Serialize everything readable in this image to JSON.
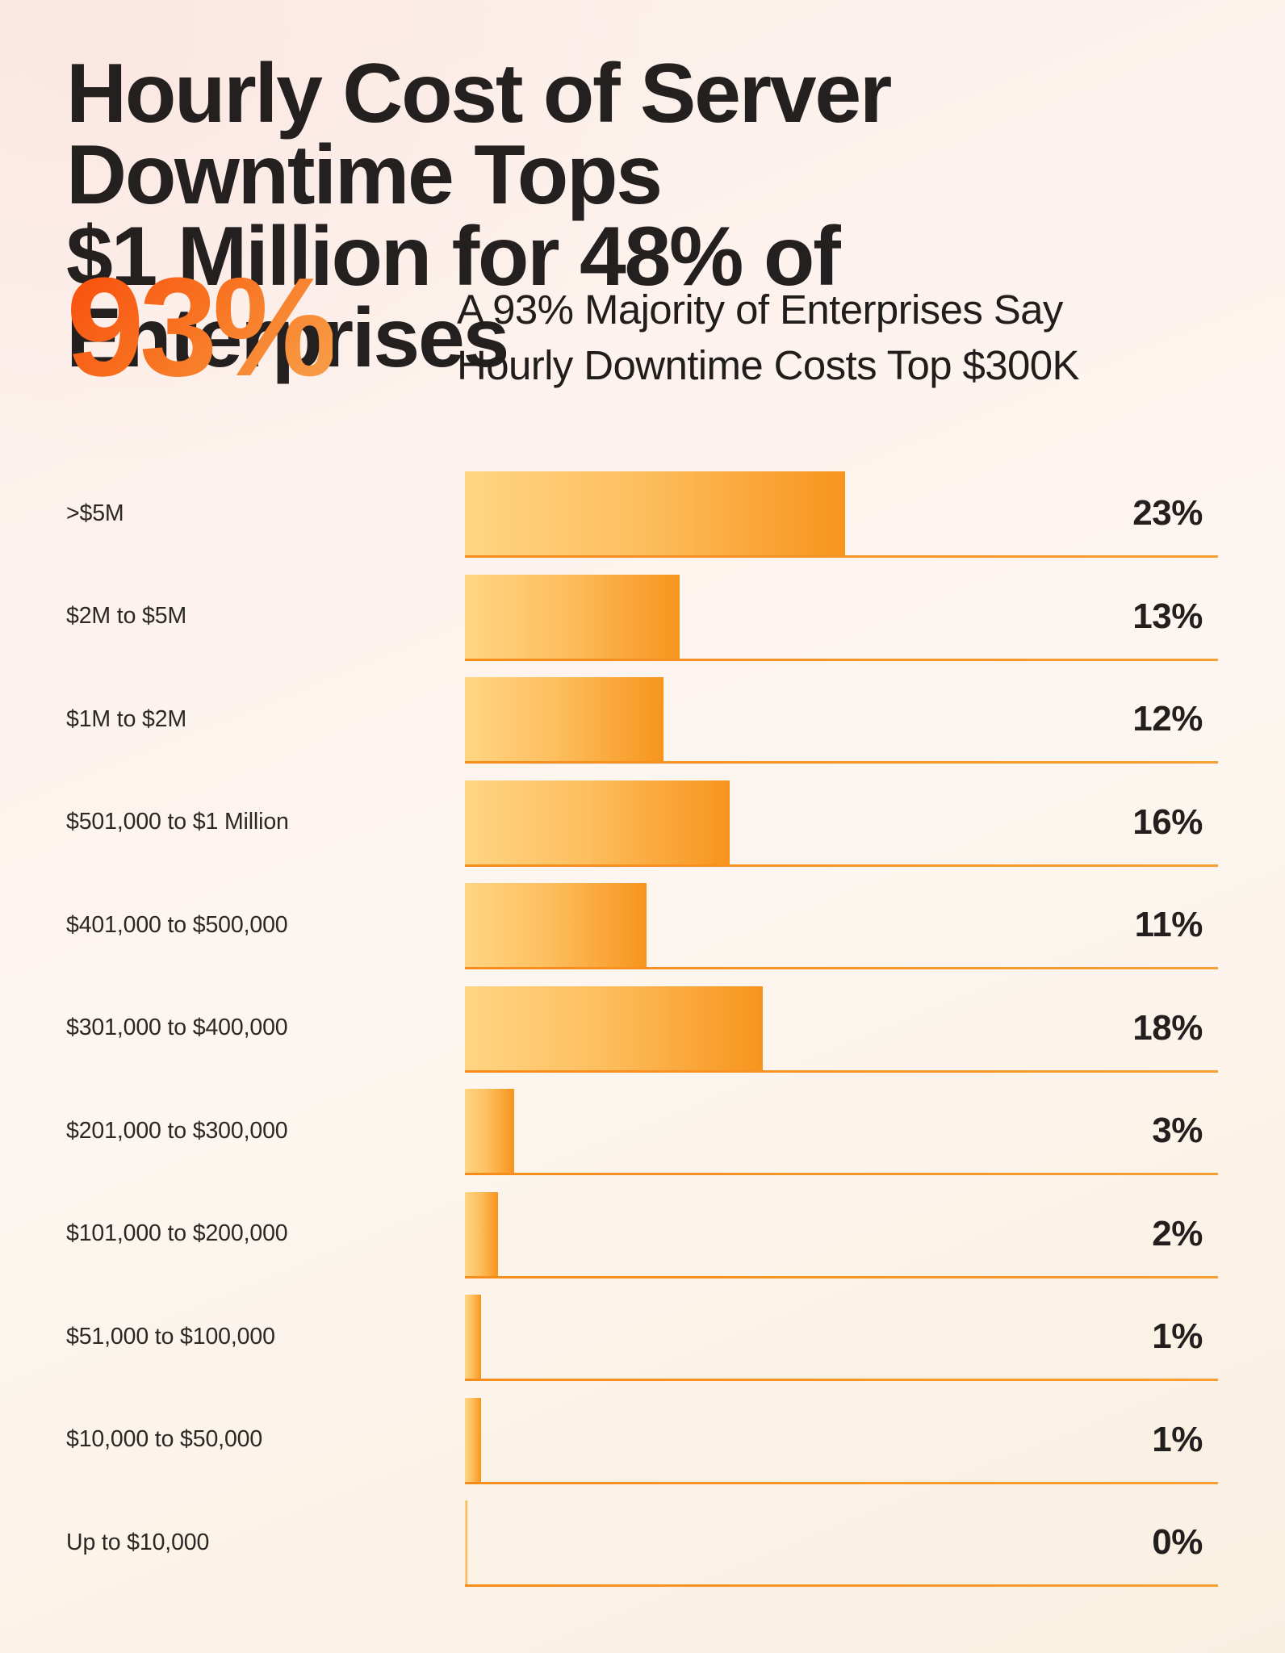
{
  "page": {
    "title_line1": "Hourly Cost of Server Downtime Tops",
    "title_line2": "$1 Million for 48% of Enterprises",
    "stat_value": "93%",
    "stat_caption_line1": "A 93% Majority of Enterprises Say",
    "stat_caption_line2": "Hourly Downtime Costs Top $300K"
  },
  "colors": {
    "background_top": "#fceee9",
    "background_bottom": "#f9efe1",
    "title_text": "#242020",
    "label_text": "#2b2725",
    "value_text": "#231f1f",
    "stat_gradient_start": "#f94b0c",
    "stat_gradient_end": "#f7a04c",
    "bar_gradient_start": "#ffd584",
    "bar_gradient_end": "#f7941d",
    "underline_orange": "#f68c1a"
  },
  "chart_data": {
    "type": "bar",
    "orientation": "horizontal",
    "title": "Hourly Cost of Server Downtime Tops $1 Million for 48% of Enterprises",
    "subtitle": "A 93% Majority of Enterprises Say Hourly Downtime Costs Top $300K",
    "categories": [
      ">$5M",
      "$2M to $5M",
      "$1M to $2M",
      "$501,000 to $1 Million",
      "$401,000 to $500,000",
      "$301,000 to $400,000",
      "$201,000 to $300,000",
      "$101,000 to $200,000",
      "$51,000 to $100,000",
      "$10,000 to $50,000",
      "Up to $10,000"
    ],
    "values": [
      23,
      13,
      12,
      16,
      11,
      18,
      3,
      2,
      1,
      1,
      0
    ],
    "value_suffix": "%",
    "xlim": [
      0,
      45.56
    ],
    "grid": false,
    "legend": "none",
    "value_labels_position": "right-aligned"
  }
}
